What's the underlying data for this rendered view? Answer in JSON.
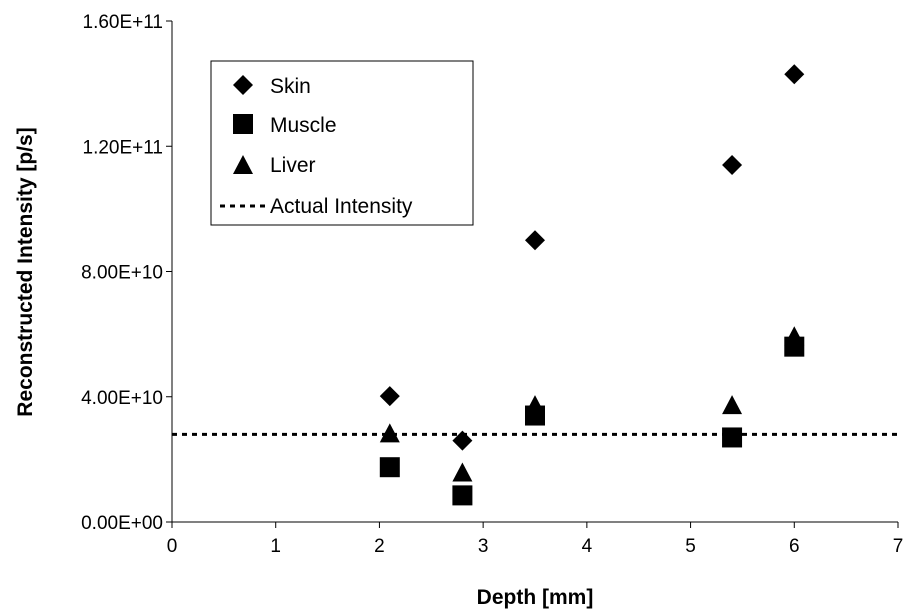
{
  "chart_data": {
    "type": "scatter",
    "xlabel": "Depth [mm]",
    "ylabel": "Reconstructed Intensity [p/s]",
    "xlim": [
      0,
      7
    ],
    "ylim": [
      0,
      160000000000
    ],
    "x_ticks": [
      0,
      1,
      2,
      3,
      4,
      5,
      6,
      7
    ],
    "x_tick_labels": [
      "0",
      "1",
      "2",
      "3",
      "4",
      "5",
      "6",
      "7"
    ],
    "y_ticks": [
      0,
      40000000000,
      80000000000,
      120000000000,
      160000000000
    ],
    "y_tick_labels": [
      "0.00E+00",
      "4.00E+10",
      "8.00E+10",
      "1.20E+11",
      "1.60E+11"
    ],
    "grid": false,
    "legend_position": "top-left",
    "series": [
      {
        "name": "Skin",
        "marker": "diamond",
        "color": "#000000",
        "x": [
          2.1,
          2.8,
          3.5,
          5.4,
          6.0
        ],
        "y": [
          40200000000,
          26000000000,
          90000000000,
          114000000000,
          143000000000
        ]
      },
      {
        "name": "Muscle",
        "marker": "square",
        "color": "#000000",
        "x": [
          2.1,
          2.8,
          3.5,
          5.4,
          6.0
        ],
        "y": [
          17500000000,
          8500000000,
          34000000000,
          27000000000,
          56000000000
        ]
      },
      {
        "name": "Liver",
        "marker": "triangle",
        "color": "#000000",
        "x": [
          2.1,
          2.8,
          3.5,
          5.4,
          6.0
        ],
        "y": [
          28000000000,
          15500000000,
          37000000000,
          37000000000,
          59000000000
        ]
      }
    ],
    "reference_line": {
      "name": "Actual Intensity",
      "y": 28000000000,
      "style": "dotted",
      "color": "#000000"
    }
  }
}
